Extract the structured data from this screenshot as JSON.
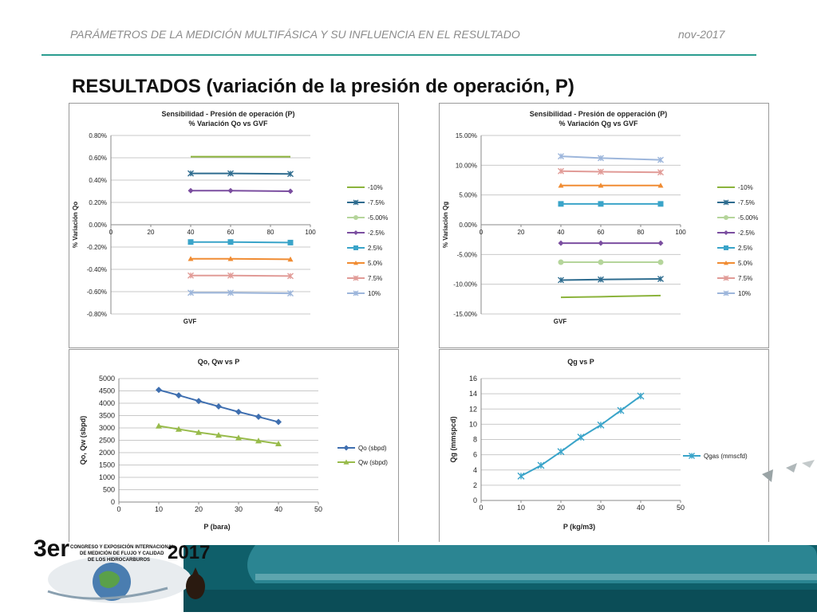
{
  "header": {
    "left": "PARÁMETROS DE LA MEDICIÓN MULTIFÁSICA Y SU INFLUENCIA EN EL RESULTADO",
    "right": "nov-2017"
  },
  "slide_title": "RESULTADOS (variación de la presión de operación, P)",
  "logo": {
    "big": "3er",
    "year": "2017",
    "lines": [
      "CONGRESO Y EXPOSICIÓN INTERNACIONAL",
      "DE MEDICIÓN DE FLUJO Y CALIDAD",
      "DE LOS HIDROCARBUROS"
    ]
  },
  "colors": {
    "accent": "#2a9d8f",
    "footer_dark": "#0f5f6a",
    "footer_mid": "#2b8592"
  },
  "chart_data": [
    {
      "type": "line",
      "title": "Sensibilidad - Presión de operación  (P)",
      "subtitle": "% Variación Qo vs GVF",
      "xlabel": "GVF",
      "ylabel": "% Variación Qo",
      "xlim": [
        0,
        100
      ],
      "xticks": [
        0,
        20,
        40,
        60,
        80,
        100
      ],
      "ylim": [
        -0.8,
        0.8
      ],
      "yticks": [
        -0.8,
        -0.6,
        -0.4,
        -0.2,
        0,
        0.2,
        0.4,
        0.6,
        0.8
      ],
      "ytick_labels": [
        "-0.80%",
        "-0.60%",
        "-0.40%",
        "-0.20%",
        "0.00%",
        "0.20%",
        "0.40%",
        "0.60%",
        "0.80%"
      ],
      "x": [
        40,
        60,
        90
      ],
      "grid": true,
      "legend": "right",
      "series": [
        {
          "name": "-10%",
          "values": [
            0.61,
            0.61,
            0.61
          ],
          "color": "#8bb33b",
          "marker": "none"
        },
        {
          "name": "-7.5%",
          "values": [
            0.46,
            0.46,
            0.455
          ],
          "color": "#2e6c8f",
          "marker": "star"
        },
        {
          "name": "-5.00%",
          "values": [
            null,
            null,
            null
          ],
          "color": "#b5d59b",
          "marker": "circle"
        },
        {
          "name": "-2.5%",
          "values": [
            0.305,
            0.305,
            0.3
          ],
          "color": "#7b4ea0",
          "marker": "diamond"
        },
        {
          "name": "2.5%",
          "values": [
            -0.155,
            -0.155,
            -0.16
          ],
          "color": "#3aa4c9",
          "marker": "square"
        },
        {
          "name": "5.0%",
          "values": [
            -0.305,
            -0.305,
            -0.31
          ],
          "color": "#f08c33",
          "marker": "triangle"
        },
        {
          "name": "7.5%",
          "values": [
            -0.455,
            -0.455,
            -0.46
          ],
          "color": "#e19b97",
          "marker": "star"
        },
        {
          "name": "10%",
          "values": [
            -0.61,
            -0.61,
            -0.615
          ],
          "color": "#9db6db",
          "marker": "star"
        }
      ]
    },
    {
      "type": "line",
      "title": "Sensibilidad - Presión de opperación (P)",
      "subtitle": "% Variación Qg vs GVF",
      "xlabel": "GVF",
      "ylabel": "% Variación Qg",
      "xlim": [
        0,
        100
      ],
      "xticks": [
        0,
        20,
        40,
        60,
        80,
        100
      ],
      "ylim": [
        -15,
        15
      ],
      "yticks": [
        -15,
        -10,
        -5,
        0,
        5,
        10,
        15
      ],
      "ytick_labels": [
        "-15.00%",
        "-10.00%",
        "-5.00%",
        "0.00%",
        "5.00%",
        "10.00%",
        "15.00%"
      ],
      "x": [
        40,
        60,
        90
      ],
      "grid": true,
      "legend": "right",
      "series": [
        {
          "name": "-10%",
          "values": [
            -12.2,
            -12.1,
            -11.9
          ],
          "color": "#8bb33b",
          "marker": "none"
        },
        {
          "name": "-7.5%",
          "values": [
            -9.3,
            -9.2,
            -9.1
          ],
          "color": "#2e6c8f",
          "marker": "star"
        },
        {
          "name": "-5.00%",
          "values": [
            -6.3,
            -6.3,
            -6.3
          ],
          "color": "#b5d59b",
          "marker": "circle"
        },
        {
          "name": "-2.5%",
          "values": [
            -3.1,
            -3.1,
            -3.1
          ],
          "color": "#7b4ea0",
          "marker": "diamond"
        },
        {
          "name": "2.5%",
          "values": [
            3.5,
            3.5,
            3.5
          ],
          "color": "#3aa4c9",
          "marker": "square"
        },
        {
          "name": "5.0%",
          "values": [
            6.6,
            6.6,
            6.6
          ],
          "color": "#f08c33",
          "marker": "triangle"
        },
        {
          "name": "7.5%",
          "values": [
            9.0,
            8.9,
            8.8
          ],
          "color": "#e19b97",
          "marker": "star"
        },
        {
          "name": "10%",
          "values": [
            11.5,
            11.2,
            10.9
          ],
          "color": "#9db6db",
          "marker": "star"
        }
      ]
    },
    {
      "type": "line",
      "title": "Qo, Qw vs P",
      "subtitle": "",
      "xlabel": "P (bara)",
      "ylabel": "Qo, Qw (sbpd)",
      "xlim": [
        0,
        50
      ],
      "xticks": [
        0,
        10,
        20,
        30,
        40,
        50
      ],
      "ylim": [
        0,
        5000
      ],
      "yticks": [
        0,
        500,
        1000,
        1500,
        2000,
        2500,
        3000,
        3500,
        4000,
        4500,
        5000
      ],
      "ytick_labels": [
        "0",
        "500",
        "1000",
        "1500",
        "2000",
        "2500",
        "3000",
        "3500",
        "4000",
        "4500",
        "5000"
      ],
      "x": [
        10,
        15,
        20,
        25,
        30,
        35,
        40
      ],
      "grid": true,
      "legend": "right",
      "series": [
        {
          "name": "Qo (sbpd)",
          "values": [
            4540,
            4320,
            4090,
            3870,
            3650,
            3450,
            3240
          ],
          "color": "#3f6fb0",
          "marker": "diamond"
        },
        {
          "name": "Qw (sbpd)",
          "values": [
            3080,
            2950,
            2820,
            2710,
            2600,
            2480,
            2360
          ],
          "color": "#98bb4b",
          "marker": "triangle"
        }
      ]
    },
    {
      "type": "line",
      "title": "Qg vs P",
      "subtitle": "",
      "xlabel": "P (kg/m3)",
      "ylabel": "Qg (mmspcd)",
      "xlim": [
        0,
        50
      ],
      "xticks": [
        0,
        10,
        20,
        30,
        40,
        50
      ],
      "ylim": [
        0,
        16
      ],
      "yticks": [
        0,
        2,
        4,
        6,
        8,
        10,
        12,
        14,
        16
      ],
      "ytick_labels": [
        "0",
        "2",
        "4",
        "6",
        "8",
        "10",
        "12",
        "14",
        "16"
      ],
      "x": [
        10,
        15,
        20,
        25,
        30,
        35,
        40
      ],
      "grid": true,
      "legend": "right",
      "series": [
        {
          "name": "Qgas (mmscfd)",
          "values": [
            3.2,
            4.6,
            6.4,
            8.3,
            9.9,
            11.8,
            13.7
          ],
          "color": "#3aa4c9",
          "marker": "star"
        }
      ]
    }
  ]
}
